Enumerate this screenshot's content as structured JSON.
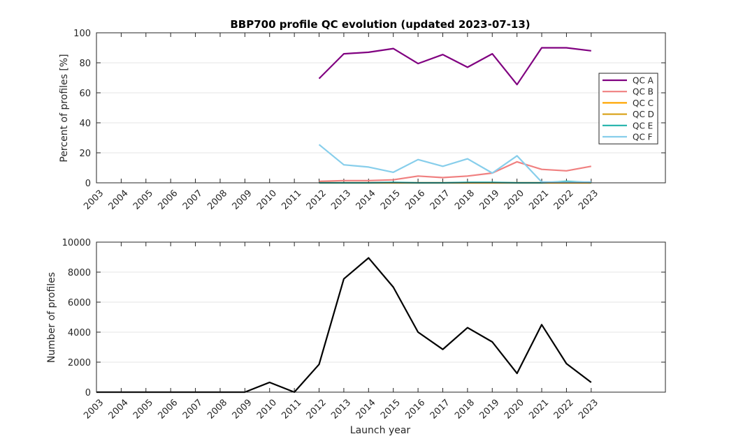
{
  "figure_title": "BBP700 profile QC evolution (updated 2023-07-13)",
  "chart_data": [
    {
      "type": "line",
      "title": "BBP700 profile QC evolution (updated 2023-07-13)",
      "xlabel": "",
      "ylabel": "Percent of profiles [%]",
      "x": [
        2003,
        2004,
        2005,
        2006,
        2007,
        2008,
        2009,
        2010,
        2011,
        2012,
        2013,
        2014,
        2015,
        2016,
        2017,
        2018,
        2019,
        2020,
        2021,
        2022,
        2023
      ],
      "xlim": [
        2003,
        2026
      ],
      "ylim": [
        0,
        100
      ],
      "yticks": [
        0,
        20,
        40,
        60,
        80,
        100
      ],
      "grid": true,
      "legend_position": "right",
      "series": [
        {
          "name": "QC A",
          "color": "#800080",
          "x": [
            2012,
            2013,
            2014,
            2015,
            2016,
            2017,
            2018,
            2019,
            2020,
            2021,
            2022,
            2023
          ],
          "values": [
            69.5,
            86,
            87,
            89.5,
            79.5,
            85.5,
            77,
            86,
            65.5,
            90,
            90,
            88
          ]
        },
        {
          "name": "QC B",
          "color": "#f08080",
          "x": [
            2012,
            2013,
            2014,
            2015,
            2016,
            2017,
            2018,
            2019,
            2020,
            2021,
            2022,
            2023
          ],
          "values": [
            1,
            1.5,
            1.5,
            2,
            4.5,
            3.5,
            4.5,
            6.5,
            14,
            9,
            8,
            11
          ]
        },
        {
          "name": "QC C",
          "color": "#ffa500",
          "x": [
            2012,
            2013,
            2014,
            2015,
            2016,
            2017,
            2018,
            2019,
            2020,
            2021,
            2022,
            2023
          ],
          "values": [
            0,
            0,
            0,
            0,
            0,
            0,
            0,
            0,
            0,
            0,
            0,
            0
          ]
        },
        {
          "name": "QC D",
          "color": "#daa520",
          "x": [
            2012,
            2013,
            2014,
            2015,
            2016,
            2017,
            2018,
            2019,
            2020,
            2021,
            2022,
            2023
          ],
          "values": [
            0,
            0,
            0,
            0,
            0,
            0,
            0,
            0,
            0,
            0,
            0,
            0
          ]
        },
        {
          "name": "QC E",
          "color": "#20b2aa",
          "x": [
            2012,
            2013,
            2014,
            2015,
            2016,
            2017,
            2018,
            2019,
            2020,
            2021,
            2022,
            2023
          ],
          "values": [
            0,
            0,
            0,
            0.3,
            0,
            0,
            0.3,
            0.3,
            0,
            0,
            1,
            0.2
          ]
        },
        {
          "name": "QC F",
          "color": "#87ceeb",
          "x": [
            2012,
            2013,
            2014,
            2015,
            2016,
            2017,
            2018,
            2019,
            2020,
            2021,
            2022,
            2023
          ],
          "values": [
            25.5,
            12,
            10.5,
            7,
            15.5,
            11,
            16,
            6.5,
            18,
            0.5,
            0.5,
            0.5
          ]
        }
      ]
    },
    {
      "type": "line",
      "title": "",
      "xlabel": "Launch year",
      "ylabel": "Number of profiles",
      "x": [
        2003,
        2004,
        2005,
        2006,
        2007,
        2008,
        2009,
        2010,
        2011,
        2012,
        2013,
        2014,
        2015,
        2016,
        2017,
        2018,
        2019,
        2020,
        2021,
        2022,
        2023
      ],
      "xlim": [
        2003,
        2026
      ],
      "ylim": [
        0,
        10000
      ],
      "yticks": [
        0,
        2000,
        4000,
        6000,
        8000,
        10000
      ],
      "grid": true,
      "series": [
        {
          "color": "#000000",
          "values": [
            0,
            0,
            0,
            0,
            0,
            0,
            0,
            650,
            0,
            1850,
            7550,
            8950,
            7000,
            4000,
            2850,
            4300,
            3350,
            1250,
            4500,
            1900,
            650
          ]
        }
      ]
    }
  ]
}
